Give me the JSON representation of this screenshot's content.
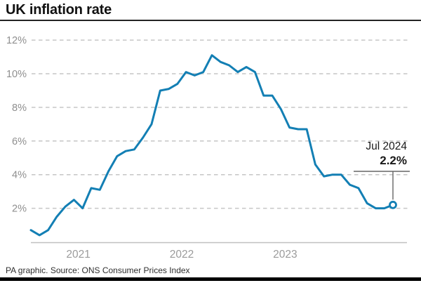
{
  "title": "UK inflation rate",
  "annotation": {
    "label": "Jul 2024",
    "value": "2.2%"
  },
  "footer": {
    "source_line": "PA graphic. Source: ONS Consumer Prices Index"
  },
  "colors": {
    "line": "#137fb4",
    "marker_fill": "#ffffff",
    "grid": "#c6c6c6",
    "axis": "#c0c0c0",
    "y_tick_text": "#8f8f8f",
    "x_tick_text": "#9b9b9b",
    "pointer": "#666666",
    "title_text": "#111111",
    "bottom_bar": "#000000"
  },
  "chart_data": {
    "type": "line",
    "title": "UK inflation rate",
    "ylabel": "",
    "xlabel": "",
    "unit": "%",
    "grid": "horizontal-dashed",
    "ylim": [
      0,
      12.6
    ],
    "y_ticks": [
      12,
      10,
      8,
      6,
      4,
      2
    ],
    "y_tick_labels": [
      "12%",
      "10%",
      "8%",
      "6%",
      "4%",
      "2%"
    ],
    "x_tick_labels": [
      "2021",
      "2022",
      "2023"
    ],
    "x": [
      "Jan 2021",
      "Feb 2021",
      "Mar 2021",
      "Apr 2021",
      "May 2021",
      "Jun 2021",
      "Jul 2021",
      "Aug 2021",
      "Sep 2021",
      "Oct 2021",
      "Nov 2021",
      "Dec 2021",
      "Jan 2022",
      "Feb 2022",
      "Mar 2022",
      "Apr 2022",
      "May 2022",
      "Jun 2022",
      "Jul 2022",
      "Aug 2022",
      "Sep 2022",
      "Oct 2022",
      "Nov 2022",
      "Dec 2022",
      "Jan 2023",
      "Feb 2023",
      "Mar 2023",
      "Apr 2023",
      "May 2023",
      "Jun 2023",
      "Jul 2023",
      "Aug 2023",
      "Sep 2023",
      "Oct 2023",
      "Nov 2023",
      "Dec 2023",
      "Jan 2024",
      "Feb 2024",
      "Mar 2024",
      "Apr 2024",
      "May 2024",
      "Jun 2024",
      "Jul 2024"
    ],
    "values": [
      0.7,
      0.4,
      0.7,
      1.5,
      2.1,
      2.5,
      2.0,
      3.2,
      3.1,
      4.2,
      5.1,
      5.4,
      5.5,
      6.2,
      7.0,
      9.0,
      9.1,
      9.4,
      10.1,
      9.9,
      10.1,
      11.1,
      10.7,
      10.5,
      10.1,
      10.4,
      10.1,
      8.7,
      8.7,
      7.9,
      6.8,
      6.7,
      6.7,
      4.6,
      3.9,
      4.0,
      4.0,
      3.4,
      3.2,
      2.3,
      2.0,
      2.0,
      2.2
    ],
    "last_point": {
      "label": "Jul 2024",
      "value": 2.2
    },
    "legend": "none"
  }
}
